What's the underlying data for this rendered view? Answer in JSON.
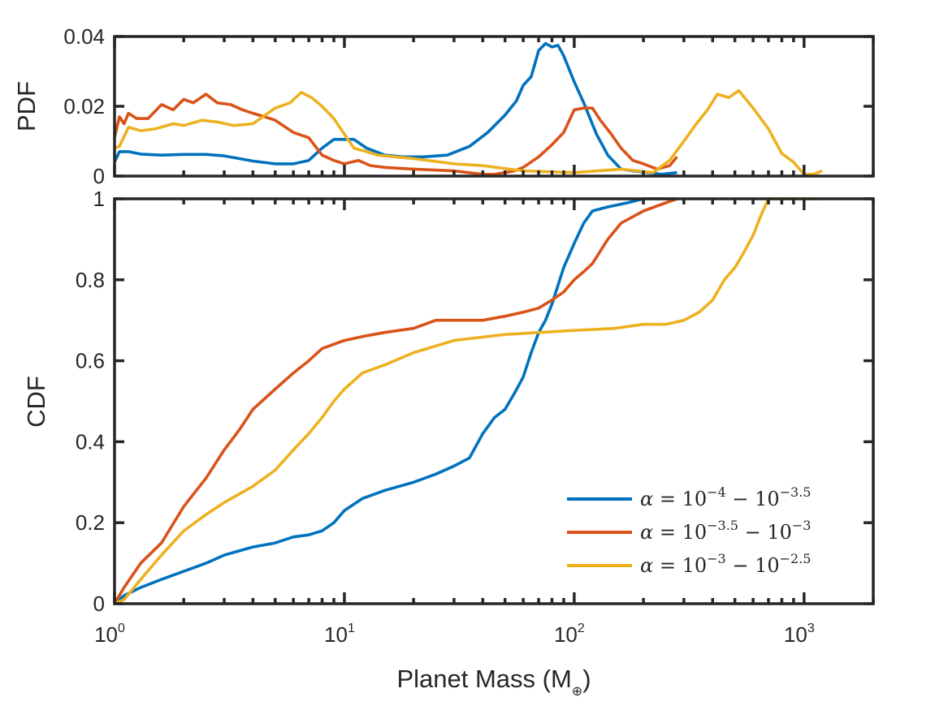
{
  "chart_data": [
    {
      "type": "line",
      "panel": "top",
      "ylabel": "PDF",
      "xscale": "log",
      "xlim": [
        1,
        2000
      ],
      "ylim": [
        0,
        0.04
      ],
      "yticks": [
        0,
        0.02,
        0.04
      ],
      "ytick_labels": [
        "0",
        "0.02",
        "0.04"
      ],
      "grid": false,
      "series": [
        {
          "name": "alpha = 10^-4 - 10^-3.5",
          "color": "#0072BD",
          "x": [
            1.0,
            1.05,
            1.15,
            1.3,
            1.6,
            2.0,
            2.5,
            3.0,
            3.5,
            4.0,
            5.0,
            6.0,
            7.0,
            8.0,
            9.0,
            10.0,
            11.0,
            12.5,
            15.0,
            18.0,
            22.0,
            28.0,
            35.0,
            42.0,
            50.0,
            56.0,
            60.0,
            65.0,
            70.0,
            75.0,
            80.0,
            85.0,
            90.0,
            100.0,
            110.0,
            125.0,
            140.0,
            160.0,
            180.0,
            210.0,
            240.0,
            280.0
          ],
          "y": [
            0.004,
            0.007,
            0.007,
            0.0063,
            0.006,
            0.0062,
            0.0062,
            0.0058,
            0.005,
            0.0043,
            0.0035,
            0.0035,
            0.0045,
            0.008,
            0.0105,
            0.0105,
            0.0105,
            0.008,
            0.006,
            0.0055,
            0.0055,
            0.006,
            0.0085,
            0.0125,
            0.0175,
            0.0215,
            0.026,
            0.0285,
            0.036,
            0.038,
            0.037,
            0.0375,
            0.0345,
            0.027,
            0.021,
            0.012,
            0.006,
            0.002,
            0.0015,
            0.001,
            0.0005,
            0.001
          ]
        },
        {
          "name": "alpha = 10^-3.5 - 10^-3",
          "color": "#D95319",
          "x": [
            1.0,
            1.05,
            1.1,
            1.15,
            1.25,
            1.4,
            1.6,
            1.8,
            2.0,
            2.2,
            2.5,
            2.8,
            3.2,
            3.6,
            4.0,
            4.5,
            5.0,
            6.0,
            7.0,
            8.0,
            9.0,
            10.0,
            11.5,
            13.0,
            15.0,
            20.0,
            30.0,
            40.0,
            45.0,
            50.0,
            55.0,
            60.0,
            70.0,
            80.0,
            90.0,
            100.0,
            110.0,
            120.0,
            130.0,
            145.0,
            160.0,
            180.0,
            200.0,
            230.0,
            260.0,
            280.0
          ],
          "y": [
            0.011,
            0.017,
            0.015,
            0.018,
            0.0165,
            0.0165,
            0.0205,
            0.019,
            0.022,
            0.021,
            0.0235,
            0.021,
            0.0205,
            0.019,
            0.018,
            0.017,
            0.016,
            0.0125,
            0.011,
            0.006,
            0.0045,
            0.0035,
            0.0045,
            0.003,
            0.0025,
            0.002,
            0.0015,
            0.0005,
            0.0005,
            0.001,
            0.0015,
            0.0025,
            0.0055,
            0.009,
            0.0125,
            0.019,
            0.0195,
            0.0195,
            0.016,
            0.012,
            0.008,
            0.0045,
            0.0035,
            0.002,
            0.003,
            0.0055
          ]
        },
        {
          "name": "alpha = 10^-3 - 10^-2.5",
          "color": "#EDB120",
          "x": [
            1.0,
            1.05,
            1.15,
            1.3,
            1.5,
            1.8,
            2.0,
            2.4,
            2.8,
            3.3,
            4.0,
            5.0,
            5.8,
            6.5,
            7.2,
            8.0,
            9.0,
            10.0,
            11.0,
            12.5,
            14.0,
            20.0,
            30.0,
            40.0,
            60.0,
            100.0,
            160.0,
            220.0,
            260.0,
            300.0,
            340.0,
            380.0,
            420.0,
            470.0,
            520.0,
            600.0,
            700.0,
            800.0,
            900.0,
            1000.0,
            1100.0,
            1200.0
          ],
          "y": [
            0.008,
            0.0085,
            0.014,
            0.013,
            0.0135,
            0.015,
            0.0145,
            0.016,
            0.0155,
            0.0145,
            0.015,
            0.0195,
            0.021,
            0.024,
            0.0225,
            0.02,
            0.0165,
            0.012,
            0.008,
            0.007,
            0.006,
            0.005,
            0.0035,
            0.003,
            0.0015,
            0.001,
            0.002,
            0.001,
            0.0045,
            0.01,
            0.015,
            0.019,
            0.0235,
            0.0225,
            0.0245,
            0.0195,
            0.0135,
            0.0065,
            0.004,
            0.0005,
            0.0005,
            0.0015
          ]
        }
      ]
    },
    {
      "type": "line",
      "panel": "bottom",
      "xlabel_text": "Planet Mass (M",
      "xlabel_subscript": "⊕",
      "xlabel_close": ")",
      "ylabel": "CDF",
      "xscale": "log",
      "xlim": [
        1,
        2000
      ],
      "ylim": [
        0,
        1
      ],
      "xticks": [
        1,
        10,
        100,
        1000
      ],
      "xtick_base": "10",
      "xtick_exponents": [
        "0",
        "1",
        "2",
        "3"
      ],
      "yticks": [
        0,
        0.2,
        0.4,
        0.6,
        0.8,
        1
      ],
      "ytick_labels": [
        "0",
        "0.2",
        "0.4",
        "0.6",
        "0.8",
        "1"
      ],
      "grid": false,
      "legend_position": "bottom-right",
      "series": [
        {
          "name": "alpha = 10^-4 - 10^-3.5",
          "color": "#0072BD",
          "legend_alpha": "α",
          "legend_eq": " = 10",
          "legend_exp1": "−4",
          "legend_mid": " − 10",
          "legend_exp2": "−3.5",
          "x": [
            1.0,
            1.1,
            1.3,
            1.6,
            2.0,
            2.5,
            3.0,
            4.0,
            5.0,
            6.0,
            7.0,
            8.0,
            9.0,
            10.0,
            12.0,
            15.0,
            20.0,
            25.0,
            30.0,
            35.0,
            40.0,
            45.0,
            50.0,
            55.0,
            60.0,
            65.0,
            70.0,
            75.0,
            80.0,
            90.0,
            100.0,
            110.0,
            120.0,
            140.0,
            170.0,
            200.0,
            230.0,
            260.0,
            280.0
          ],
          "y": [
            0.0,
            0.02,
            0.04,
            0.06,
            0.08,
            0.1,
            0.12,
            0.14,
            0.15,
            0.165,
            0.17,
            0.18,
            0.2,
            0.23,
            0.26,
            0.28,
            0.3,
            0.32,
            0.34,
            0.36,
            0.42,
            0.46,
            0.48,
            0.52,
            0.56,
            0.62,
            0.67,
            0.7,
            0.74,
            0.83,
            0.89,
            0.94,
            0.97,
            0.98,
            0.99,
            1.0,
            1.0,
            1.0,
            1.0
          ]
        },
        {
          "name": "alpha = 10^-3.5 - 10^-3",
          "color": "#D95319",
          "legend_alpha": "α",
          "legend_eq": " = 10",
          "legend_exp1": "−3.5",
          "legend_mid": " − 10",
          "legend_exp2": "−3",
          "x": [
            1.0,
            1.1,
            1.3,
            1.6,
            2.0,
            2.5,
            3.0,
            3.5,
            4.0,
            5.0,
            6.0,
            7.0,
            8.0,
            10.0,
            12.0,
            15.0,
            20.0,
            25.0,
            30.0,
            40.0,
            50.0,
            60.0,
            70.0,
            80.0,
            90.0,
            100.0,
            110.0,
            120.0,
            140.0,
            160.0,
            200.0,
            250.0,
            280.0
          ],
          "y": [
            0.0,
            0.04,
            0.1,
            0.15,
            0.24,
            0.31,
            0.38,
            0.43,
            0.48,
            0.53,
            0.57,
            0.6,
            0.63,
            0.65,
            0.66,
            0.67,
            0.68,
            0.7,
            0.7,
            0.7,
            0.71,
            0.72,
            0.73,
            0.75,
            0.77,
            0.8,
            0.82,
            0.84,
            0.9,
            0.94,
            0.97,
            0.99,
            1.0
          ]
        },
        {
          "name": "alpha = 10^-3 - 10^-2.5",
          "color": "#EDB120",
          "legend_alpha": "α",
          "legend_eq": " = 10",
          "legend_exp1": "−3",
          "legend_mid": " − 10",
          "legend_exp2": "−2.5",
          "x": [
            1.0,
            1.1,
            1.3,
            1.6,
            2.0,
            2.5,
            3.0,
            4.0,
            5.0,
            6.0,
            7.0,
            8.0,
            9.0,
            10.0,
            12.0,
            15.0,
            20.0,
            30.0,
            50.0,
            100.0,
            150.0,
            200.0,
            250.0,
            300.0,
            350.0,
            400.0,
            450.0,
            500.0,
            550.0,
            600.0,
            650.0,
            700.0,
            800.0,
            1000.0,
            1200.0
          ],
          "y": [
            0.0,
            0.01,
            0.06,
            0.12,
            0.18,
            0.22,
            0.25,
            0.29,
            0.33,
            0.38,
            0.42,
            0.46,
            0.5,
            0.53,
            0.57,
            0.59,
            0.62,
            0.65,
            0.665,
            0.675,
            0.68,
            0.69,
            0.69,
            0.7,
            0.72,
            0.75,
            0.8,
            0.83,
            0.87,
            0.91,
            0.96,
            1.0,
            1.0,
            1.0,
            1.0
          ]
        }
      ]
    }
  ]
}
